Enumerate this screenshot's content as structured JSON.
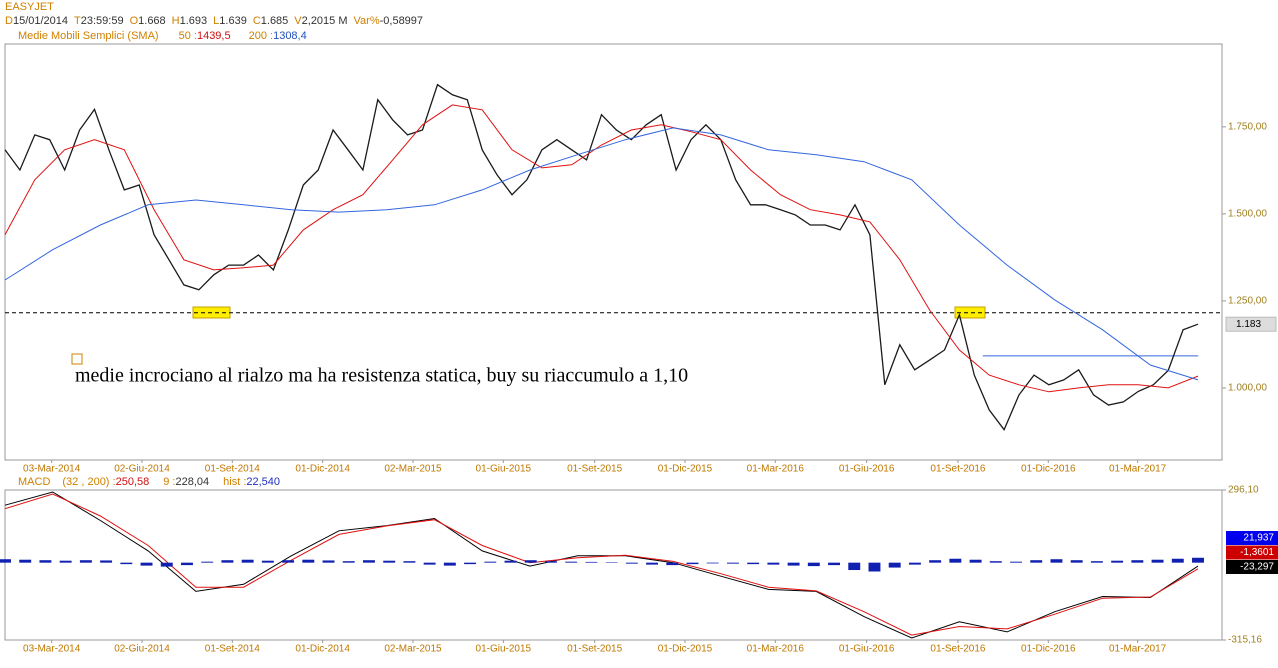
{
  "header": {
    "title": "EASYJET",
    "quote": [
      {
        "key": "D",
        "value": "15/01/2014"
      },
      {
        "key": "T",
        "value": "23:59:59"
      },
      {
        "key": "O",
        "value": "1.668"
      },
      {
        "key": "H",
        "value": "1.693"
      },
      {
        "key": "L",
        "value": "1.639"
      },
      {
        "key": "C",
        "value": "1.685"
      },
      {
        "key": "V",
        "value": "2,2015 M"
      },
      {
        "key": "Var%",
        "value": "-0,58997"
      }
    ],
    "sma": {
      "label": "Medie Mobili Semplici (SMA)",
      "items": [
        {
          "key": "50 :",
          "value": "1439,5",
          "color": "#d01010"
        },
        {
          "key": "200 :",
          "value": "1308,4",
          "color": "#2050c0"
        }
      ]
    }
  },
  "chart_data": [
    {
      "type": "line",
      "xlim": [
        "2014-01-15",
        "2017-05-25"
      ],
      "xticks": [
        {
          "value": "2014-03-03",
          "label": "03-Mar-2014"
        },
        {
          "value": "2014-06-02",
          "label": "02-Giu-2014"
        },
        {
          "value": "2014-09-01",
          "label": "01-Set-2014"
        },
        {
          "value": "2014-12-01",
          "label": "01-Dic-2014"
        },
        {
          "value": "2015-03-02",
          "label": "02-Mar-2015"
        },
        {
          "value": "2015-06-01",
          "label": "01-Giu-2015"
        },
        {
          "value": "2015-09-01",
          "label": "01-Set-2015"
        },
        {
          "value": "2015-12-01",
          "label": "01-Dic-2015"
        },
        {
          "value": "2016-03-01",
          "label": "01-Mar-2016"
        },
        {
          "value": "2016-06-01",
          "label": "01-Giu-2016"
        },
        {
          "value": "2016-09-01",
          "label": "01-Set-2016"
        },
        {
          "value": "2016-12-01",
          "label": "01-Dic-2016"
        },
        {
          "value": "2017-03-01",
          "label": "01-Mar-2017"
        }
      ],
      "ylim": [
        793,
        1988
      ],
      "yticks": [
        {
          "value": 1000,
          "label": "1.000,00"
        },
        {
          "value": 1250,
          "label": "1.250,00"
        },
        {
          "value": 1500,
          "label": "1.500,00"
        },
        {
          "value": 1750,
          "label": "1.750,00"
        }
      ],
      "series": [
        {
          "color": "#1a1a1a",
          "values": [
            1684,
            1626,
            1727,
            1713,
            1626,
            1741,
            1800,
            1680,
            1569,
            1583,
            1440,
            1368,
            1296,
            1282,
            1325,
            1353,
            1353,
            1382,
            1339,
            1454,
            1583,
            1626,
            1741,
            1684,
            1626,
            1828,
            1770,
            1727,
            1741,
            1871,
            1842,
            1828,
            1684,
            1612,
            1555,
            1598,
            1684,
            1713,
            1684,
            1655,
            1785,
            1741,
            1713,
            1756,
            1785,
            1626,
            1713,
            1756,
            1713,
            1598,
            1526,
            1526,
            1512,
            1497,
            1468,
            1468,
            1454,
            1526,
            1440,
            1009,
            1124,
            1052,
            1080,
            1109,
            1210,
            1037,
            937,
            880,
            980,
            1037,
            1009,
            1023,
            1052,
            980,
            951,
            960,
            990,
            1009,
            1050,
            1167,
            1183
          ]
        },
        {
          "color": "#e01010",
          "values": [
            1440,
            1598,
            1684,
            1713,
            1684,
            1512,
            1368,
            1339,
            1345,
            1353,
            1454,
            1512,
            1555,
            1655,
            1756,
            1813,
            1799,
            1684,
            1632,
            1641,
            1698,
            1741,
            1756,
            1736,
            1713,
            1626,
            1555,
            1512,
            1497,
            1477,
            1368,
            1224,
            1109,
            1037,
            1009,
            989,
            1000,
            1009,
            1009,
            1000,
            1034
          ]
        },
        {
          "color": "#3366dd",
          "values": [
            1310,
            1397,
            1468,
            1526,
            1540,
            1526,
            1512,
            1505,
            1512,
            1526,
            1569,
            1626,
            1670,
            1713,
            1747,
            1727,
            1684,
            1670,
            1650,
            1598,
            1468,
            1353,
            1253,
            1167,
            1066,
            1023
          ]
        }
      ],
      "hlines": [
        {
          "value": 1216,
          "dashed": true,
          "color": "#000000"
        },
        {
          "value": 1092,
          "from": "2016-09-26",
          "to": "2017-05-01",
          "color": "#3366dd"
        }
      ],
      "last": {
        "value": 1183,
        "label": "1.183"
      },
      "annotation": "medie incrociano al rialzo ma ha resistenza statica, buy su riaccumulo a 1,10"
    },
    {
      "type": "line",
      "title": "MACD",
      "legend": [
        {
          "key": "(32 , 200) :",
          "value": "250,58",
          "color": "#d01010"
        },
        {
          "key": "9 :",
          "value": "228,04",
          "color": "#333333"
        },
        {
          "key": "hist :",
          "value": "22,540",
          "color": "#2030c0"
        }
      ],
      "ylim": [
        -315.16,
        296.1
      ],
      "yticks": [
        {
          "value": 296.1,
          "label": "296,10"
        },
        {
          "value": -315.16,
          "label": "-315,16"
        }
      ],
      "series": [
        {
          "color": "#000000",
          "values": [
            234,
            288,
            172,
            48,
            -117,
            -88,
            28,
            130,
            151,
            180,
            48,
            -14,
            28,
            28,
            0,
            -55,
            -109,
            -117,
            -220,
            -307,
            -241,
            -282,
            -200,
            -138,
            -142,
            -14
          ]
        },
        {
          "color": "#e01010",
          "values": [
            220,
            280,
            190,
            70,
            -100,
            -100,
            10,
            115,
            150,
            175,
            70,
            0,
            20,
            30,
            5,
            -45,
            -100,
            -115,
            -200,
            -295,
            -260,
            -270,
            -210,
            -145,
            -140,
            -25
          ]
        },
        {
          "type": "bar",
          "color": "#1020b0",
          "values": [
            14,
            12,
            10,
            8,
            10,
            9,
            -6,
            -12,
            -16,
            -10,
            4,
            10,
            12,
            8,
            10,
            12,
            9,
            6,
            10,
            8,
            6,
            -8,
            -12,
            -6,
            4,
            8,
            10,
            6,
            4,
            3,
            2,
            -4,
            -8,
            -10,
            -6,
            -3,
            -4,
            -6,
            -8,
            -12,
            -14,
            -10,
            -30,
            -36,
            -20,
            -8,
            10,
            16,
            12,
            6,
            4,
            10,
            14,
            10,
            6,
            8,
            10,
            12,
            16,
            20
          ]
        }
      ],
      "boxes": [
        {
          "value": 21.937,
          "label": "21,937",
          "color": "#0000ee"
        },
        {
          "value": -1.3601,
          "label": "-1,3601",
          "color": "#cc0000"
        },
        {
          "value": -23.297,
          "label": "-23,297",
          "color": "#000000"
        }
      ]
    }
  ]
}
